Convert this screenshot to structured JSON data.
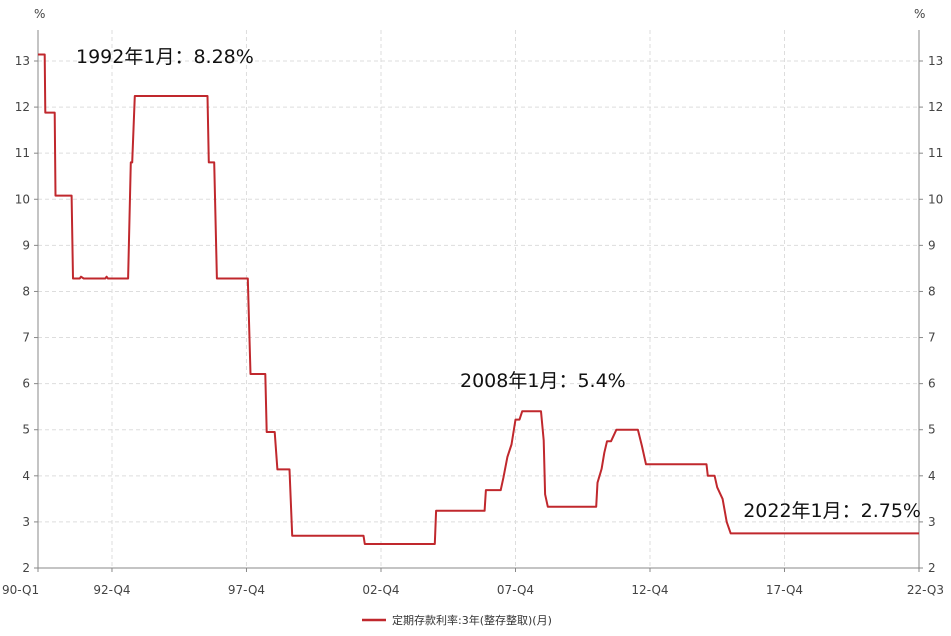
{
  "chart_data": {
    "type": "line",
    "title": "",
    "unit_left": "%",
    "unit_right": "%",
    "ylim": [
      2,
      13.5
    ],
    "y_ticks": [
      2,
      3,
      4,
      5,
      6,
      7,
      8,
      9,
      10,
      11,
      12,
      13
    ],
    "xlim": [
      1990.0,
      2022.75
    ],
    "x_ticks": [
      {
        "label": "90-Q1",
        "t": 1990.0
      },
      {
        "label": "92-Q4",
        "t": 1992.75
      },
      {
        "label": "97-Q4",
        "t": 1997.75
      },
      {
        "label": "02-Q4",
        "t": 2002.75
      },
      {
        "label": "07-Q4",
        "t": 2007.75
      },
      {
        "label": "12-Q4",
        "t": 2012.75
      },
      {
        "label": "17-Q4",
        "t": 2017.75
      },
      {
        "label": "22-Q3",
        "t": 2022.75
      }
    ],
    "grid": true,
    "legend_position": "bottom-center",
    "series": [
      {
        "name": "定期存款利率:3年(整存整取)(月)",
        "color": "#c0282d",
        "points": [
          [
            1990.0,
            13.14
          ],
          [
            1990.25,
            13.14
          ],
          [
            1990.27,
            11.88
          ],
          [
            1990.62,
            11.88
          ],
          [
            1990.65,
            10.08
          ],
          [
            1991.25,
            10.08
          ],
          [
            1991.3,
            8.28
          ],
          [
            1991.55,
            8.28
          ],
          [
            1991.6,
            8.32
          ],
          [
            1991.7,
            8.28
          ],
          [
            1992.5,
            8.28
          ],
          [
            1992.55,
            8.32
          ],
          [
            1992.6,
            8.28
          ],
          [
            1993.35,
            8.28
          ],
          [
            1993.45,
            10.8
          ],
          [
            1993.5,
            10.8
          ],
          [
            1993.6,
            12.24
          ],
          [
            1996.3,
            12.24
          ],
          [
            1996.35,
            10.8
          ],
          [
            1996.55,
            10.8
          ],
          [
            1996.65,
            8.28
          ],
          [
            1997.8,
            8.28
          ],
          [
            1997.9,
            6.21
          ],
          [
            1998.45,
            6.21
          ],
          [
            1998.5,
            4.95
          ],
          [
            1998.8,
            4.95
          ],
          [
            1998.9,
            4.14
          ],
          [
            1999.35,
            4.14
          ],
          [
            1999.45,
            2.7
          ],
          [
            2002.1,
            2.7
          ],
          [
            2002.15,
            2.52
          ],
          [
            2004.75,
            2.52
          ],
          [
            2004.8,
            3.24
          ],
          [
            2006.6,
            3.24
          ],
          [
            2006.65,
            3.69
          ],
          [
            2007.2,
            3.69
          ],
          [
            2007.3,
            3.96
          ],
          [
            2007.45,
            4.41
          ],
          [
            2007.6,
            4.68
          ],
          [
            2007.75,
            5.22
          ],
          [
            2007.9,
            5.22
          ],
          [
            2008.0,
            5.4
          ],
          [
            2008.7,
            5.4
          ],
          [
            2008.8,
            4.77
          ],
          [
            2008.85,
            3.6
          ],
          [
            2008.95,
            3.33
          ],
          [
            2010.75,
            3.33
          ],
          [
            2010.8,
            3.85
          ],
          [
            2010.95,
            4.15
          ],
          [
            2011.05,
            4.5
          ],
          [
            2011.15,
            4.75
          ],
          [
            2011.3,
            4.75
          ],
          [
            2011.5,
            5.0
          ],
          [
            2012.3,
            5.0
          ],
          [
            2012.45,
            4.65
          ],
          [
            2012.6,
            4.25
          ],
          [
            2014.85,
            4.25
          ],
          [
            2014.9,
            4.0
          ],
          [
            2015.15,
            4.0
          ],
          [
            2015.25,
            3.75
          ],
          [
            2015.45,
            3.5
          ],
          [
            2015.6,
            3.0
          ],
          [
            2015.75,
            2.75
          ],
          [
            2022.75,
            2.75
          ]
        ]
      }
    ],
    "annotations": [
      {
        "text": "1992年1月：8.28%",
        "x": 1992.0,
        "y": 8.28
      },
      {
        "text": "2008年1月：5.4%",
        "x": 2008.0,
        "y": 5.4
      },
      {
        "text": "2022年1月：2.75%",
        "x": 2022.0,
        "y": 2.75
      }
    ]
  }
}
